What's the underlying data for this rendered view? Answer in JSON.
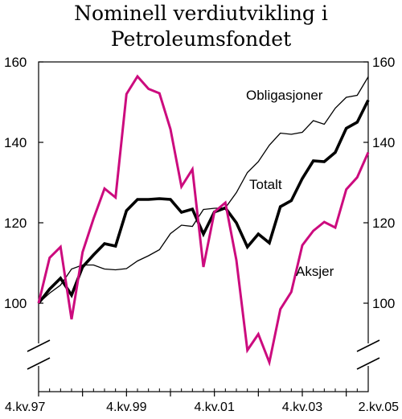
{
  "chart_data": {
    "type": "line",
    "title_lines": [
      "Nominell verdiutvikling i",
      "Petroleumsfondet"
    ],
    "ylim": [
      85,
      160
    ],
    "y_ticks": [
      100,
      120,
      140,
      160
    ],
    "y_tick_labels": [
      "100",
      "120",
      "140",
      "160"
    ],
    "x_tick_labels": [
      "4.kv.97",
      "4.kv.99",
      "4.kv.01",
      "4.kv.03",
      "2.kv.05"
    ],
    "x": [
      "4.kv.97",
      "1.kv.98",
      "2.kv.98",
      "3.kv.98",
      "4.kv.98",
      "1.kv.99",
      "2.kv.99",
      "3.kv.99",
      "4.kv.99",
      "1.kv.00",
      "2.kv.00",
      "3.kv.00",
      "4.kv.00",
      "1.kv.01",
      "2.kv.01",
      "3.kv.01",
      "4.kv.01",
      "1.kv.02",
      "2.kv.02",
      "3.kv.02",
      "4.kv.02",
      "1.kv.03",
      "2.kv.03",
      "3.kv.03",
      "4.kv.03",
      "1.kv.04",
      "2.kv.04",
      "3.kv.04",
      "4.kv.04",
      "1.kv.05",
      "2.kv.05"
    ],
    "series": [
      {
        "name": "Obligasjoner",
        "color": "#000000",
        "weight": "thin",
        "values": [
          100,
          102.5,
          104.5,
          108.5,
          109.5,
          109.5,
          108.5,
          108.3,
          108.6,
          110.5,
          111.8,
          113.3,
          117.3,
          119.4,
          119.1,
          123.3,
          123.6,
          123.7,
          127.5,
          132.5,
          135.2,
          139.3,
          142.3,
          142.0,
          142.5,
          145.4,
          144.5,
          148.5,
          151.2,
          151.7,
          156.3
        ]
      },
      {
        "name": "Totalt",
        "color": "#000000",
        "weight": "thick",
        "values": [
          100,
          103.5,
          106.2,
          102.0,
          109.0,
          112.0,
          114.8,
          114.2,
          123.0,
          125.8,
          125.8,
          126.0,
          125.8,
          122.6,
          123.4,
          117.2,
          122.7,
          123.7,
          120.0,
          114.0,
          117.2,
          115.0,
          124.0,
          125.5,
          131.0,
          135.4,
          135.2,
          137.5,
          143.5,
          145.0,
          150.5
        ]
      },
      {
        "name": "Aksjer",
        "color": "#cc0b7e",
        "weight": "medium",
        "values": [
          100,
          111.3,
          114.0,
          96.0,
          112.7,
          121.0,
          128.5,
          126.3,
          152.0,
          156.4,
          153.3,
          152.2,
          143.3,
          129.0,
          133.3,
          109.0,
          122.7,
          125.0,
          110.7,
          88.3,
          92.3,
          85.3,
          98.5,
          102.8,
          114.4,
          118.0,
          120.2,
          118.8,
          128.3,
          131.3,
          137.5
        ]
      }
    ]
  }
}
